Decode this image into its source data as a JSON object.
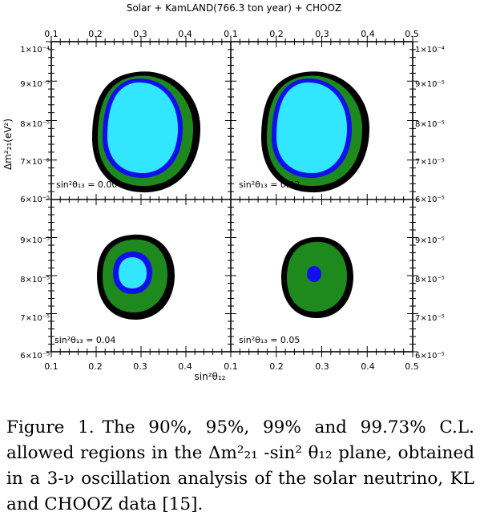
{
  "figure": {
    "title": "Solar + KamLAND(766.3 ton year) + CHOOZ",
    "x_axis_label": "sin²θ₁₂",
    "y_axis_label": "Δm²₂₁(eV²)",
    "x_ticks_left": [
      "0.1",
      "0.2",
      "0.3",
      "0.4"
    ],
    "x_ticks_right": [
      "0.1",
      "0.2",
      "0.3",
      "0.4",
      "0.5"
    ],
    "y_ticks_top": [
      "1×10⁻⁴",
      "9×10⁻⁵",
      "8×10⁻⁵",
      "7×10⁻⁵",
      "6×10⁻⁵"
    ],
    "y_ticks_bottom": [
      "9×10⁻⁵",
      "8×10⁻⁵",
      "7×10⁻⁵",
      "6×10⁻⁵"
    ],
    "panels": [
      {
        "label": "sin²θ₁₃ = 0.00"
      },
      {
        "label": "sin²θ₁₃ = 0.02"
      },
      {
        "label": "sin²θ₁₃ = 0.04"
      },
      {
        "label": "sin²θ₁₃ = 0.05"
      }
    ]
  },
  "caption": {
    "label": "Figure 1.",
    "text": "The 90%, 95%, 99% and 99.73% C.L. allowed regions in the Δm²₂₁ -sin² θ₁₂ plane, obtained in a 3-ν oscillation analysis of the solar neutrino, KL and CHOOZ data [15]."
  }
}
